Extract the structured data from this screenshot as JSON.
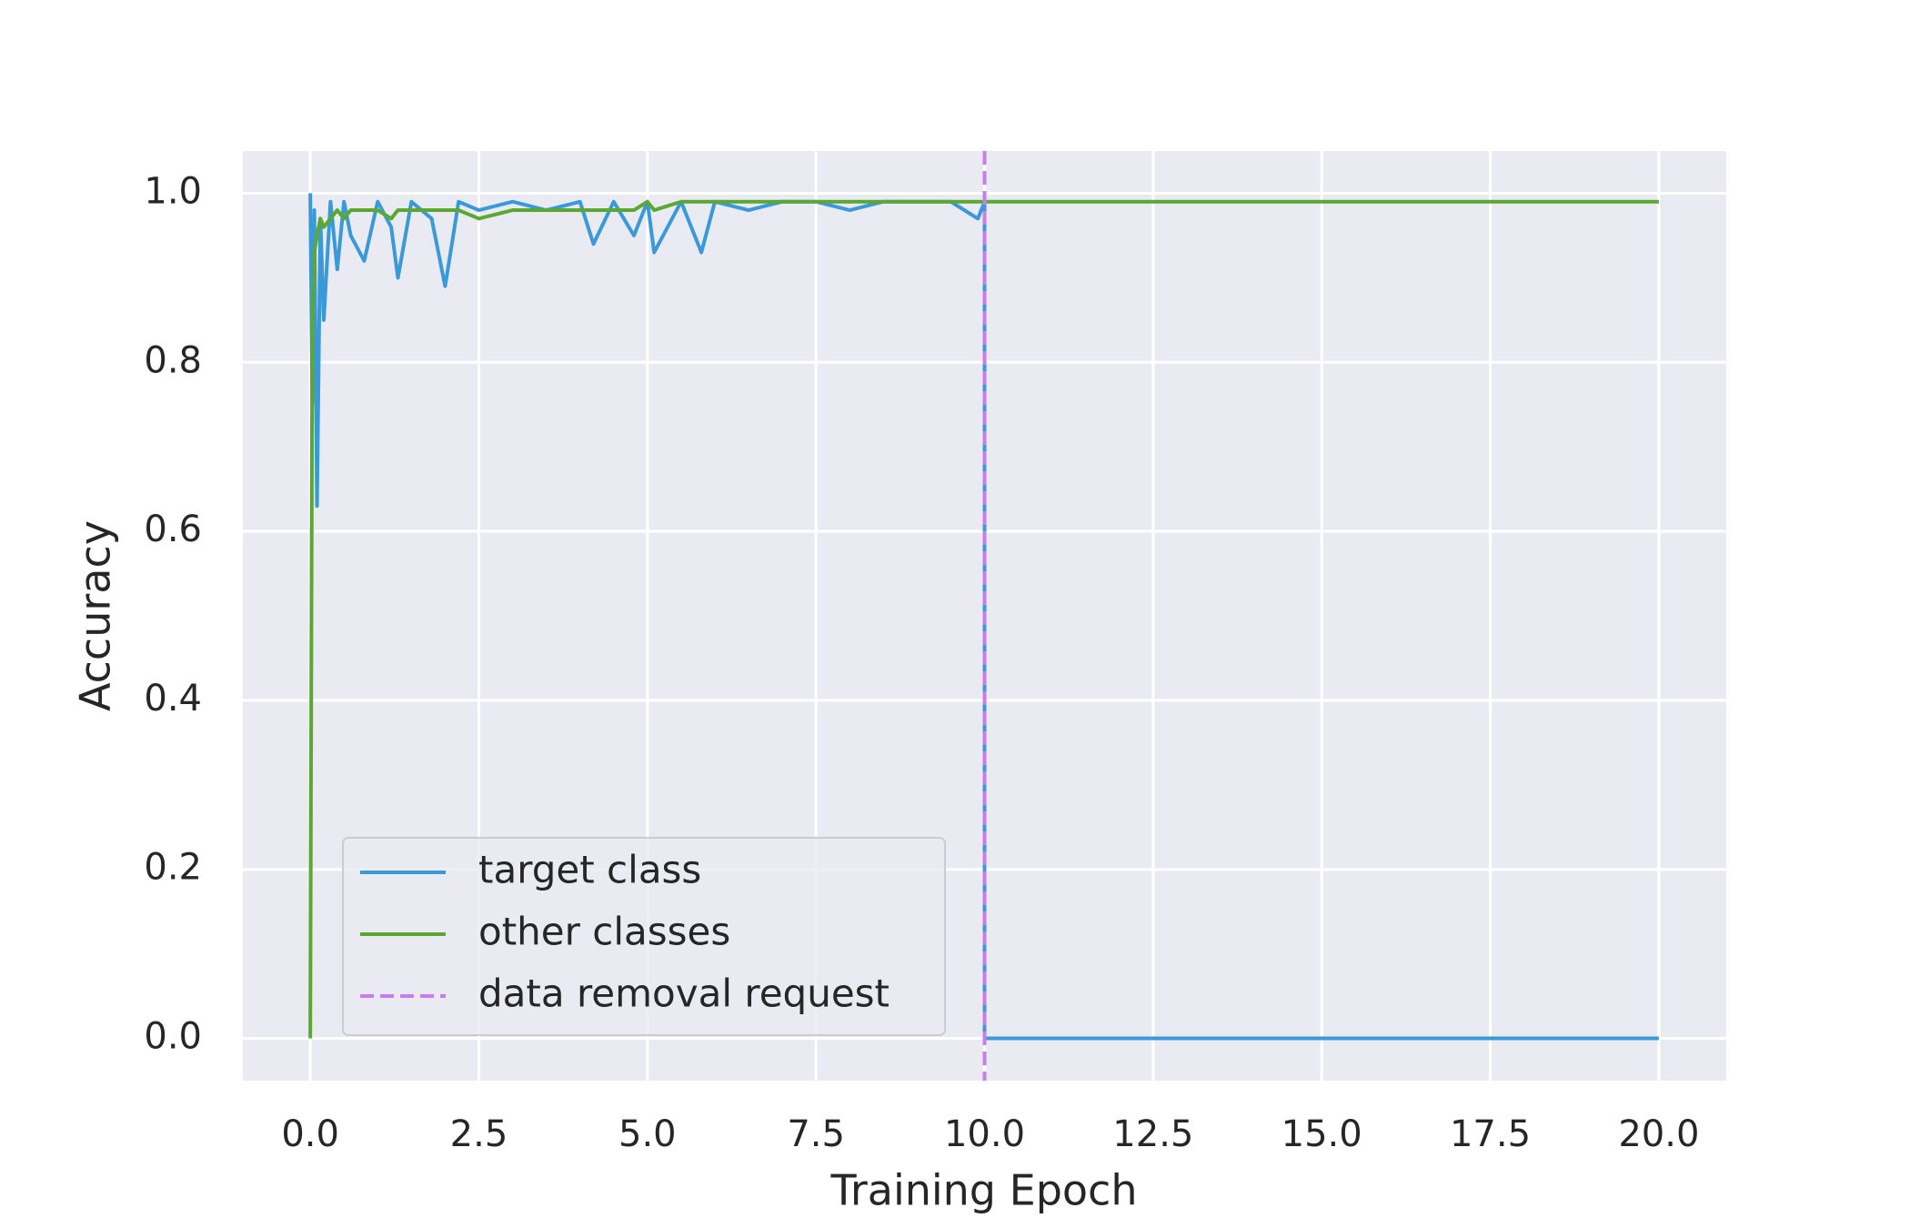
{
  "chart_data": {
    "type": "line",
    "xlabel": "Training Epoch",
    "ylabel": "Accuracy",
    "x": [
      0,
      0.03,
      0.06,
      0.1,
      0.15,
      0.2,
      0.3,
      0.4,
      0.5,
      0.6,
      0.8,
      1.0,
      1.2,
      1.3,
      1.5,
      1.8,
      2.0,
      2.2,
      2.5,
      3.0,
      3.5,
      4.0,
      4.2,
      4.5,
      4.8,
      5.0,
      5.1,
      5.5,
      5.8,
      6.0,
      6.5,
      7.0,
      7.5,
      8.0,
      8.5,
      9.0,
      9.5,
      9.9,
      10.0,
      10.0,
      11,
      12,
      13,
      14,
      15,
      16,
      17,
      18,
      19,
      20
    ],
    "series": [
      {
        "name": "target class",
        "color": "#3a9ad9",
        "values": [
          1.0,
          0.75,
          0.98,
          0.63,
          0.97,
          0.85,
          0.99,
          0.91,
          0.99,
          0.95,
          0.92,
          0.99,
          0.96,
          0.9,
          0.99,
          0.97,
          0.89,
          0.99,
          0.98,
          0.99,
          0.98,
          0.99,
          0.94,
          0.99,
          0.95,
          0.99,
          0.93,
          0.99,
          0.93,
          0.99,
          0.98,
          0.99,
          0.99,
          0.98,
          0.99,
          0.99,
          0.99,
          0.97,
          0.99,
          0,
          0,
          0,
          0,
          0,
          0,
          0,
          0,
          0,
          0,
          0
        ]
      },
      {
        "name": "other classes",
        "color": "#5aa832",
        "values": [
          0,
          0.85,
          0.93,
          0.95,
          0.97,
          0.96,
          0.97,
          0.98,
          0.97,
          0.98,
          0.98,
          0.98,
          0.97,
          0.98,
          0.98,
          0.98,
          0.98,
          0.98,
          0.97,
          0.98,
          0.98,
          0.98,
          0.98,
          0.98,
          0.98,
          0.99,
          0.98,
          0.99,
          0.99,
          0.99,
          0.99,
          0.99,
          0.99,
          0.99,
          0.99,
          0.99,
          0.99,
          0.99,
          0.99,
          0.99,
          0.99,
          0.99,
          0.99,
          0.99,
          0.99,
          0.99,
          0.99,
          0.99,
          0.99,
          0.99
        ]
      }
    ],
    "vlines": [
      {
        "name": "data removal request",
        "color": "#c77dea",
        "x": 10,
        "dashed": true
      }
    ],
    "xlim": [
      -1,
      21
    ],
    "xticks": [
      {
        "value": 0,
        "label": "0.0"
      },
      2.5,
      {
        "value": 5,
        "label": "5.0"
      },
      7.5,
      {
        "value": 10,
        "label": "10.0"
      },
      12.5,
      {
        "value": 15,
        "label": "15.0"
      },
      17.5,
      {
        "value": 20,
        "label": "20.0"
      }
    ],
    "ylim": [
      -0.05,
      1.05
    ],
    "yticks": [
      {
        "value": 0,
        "label": "0.0"
      },
      0.2,
      0.4,
      0.6,
      0.8,
      {
        "value": 1,
        "label": "1.0"
      }
    ],
    "grid": true,
    "legend": "lower left"
  }
}
